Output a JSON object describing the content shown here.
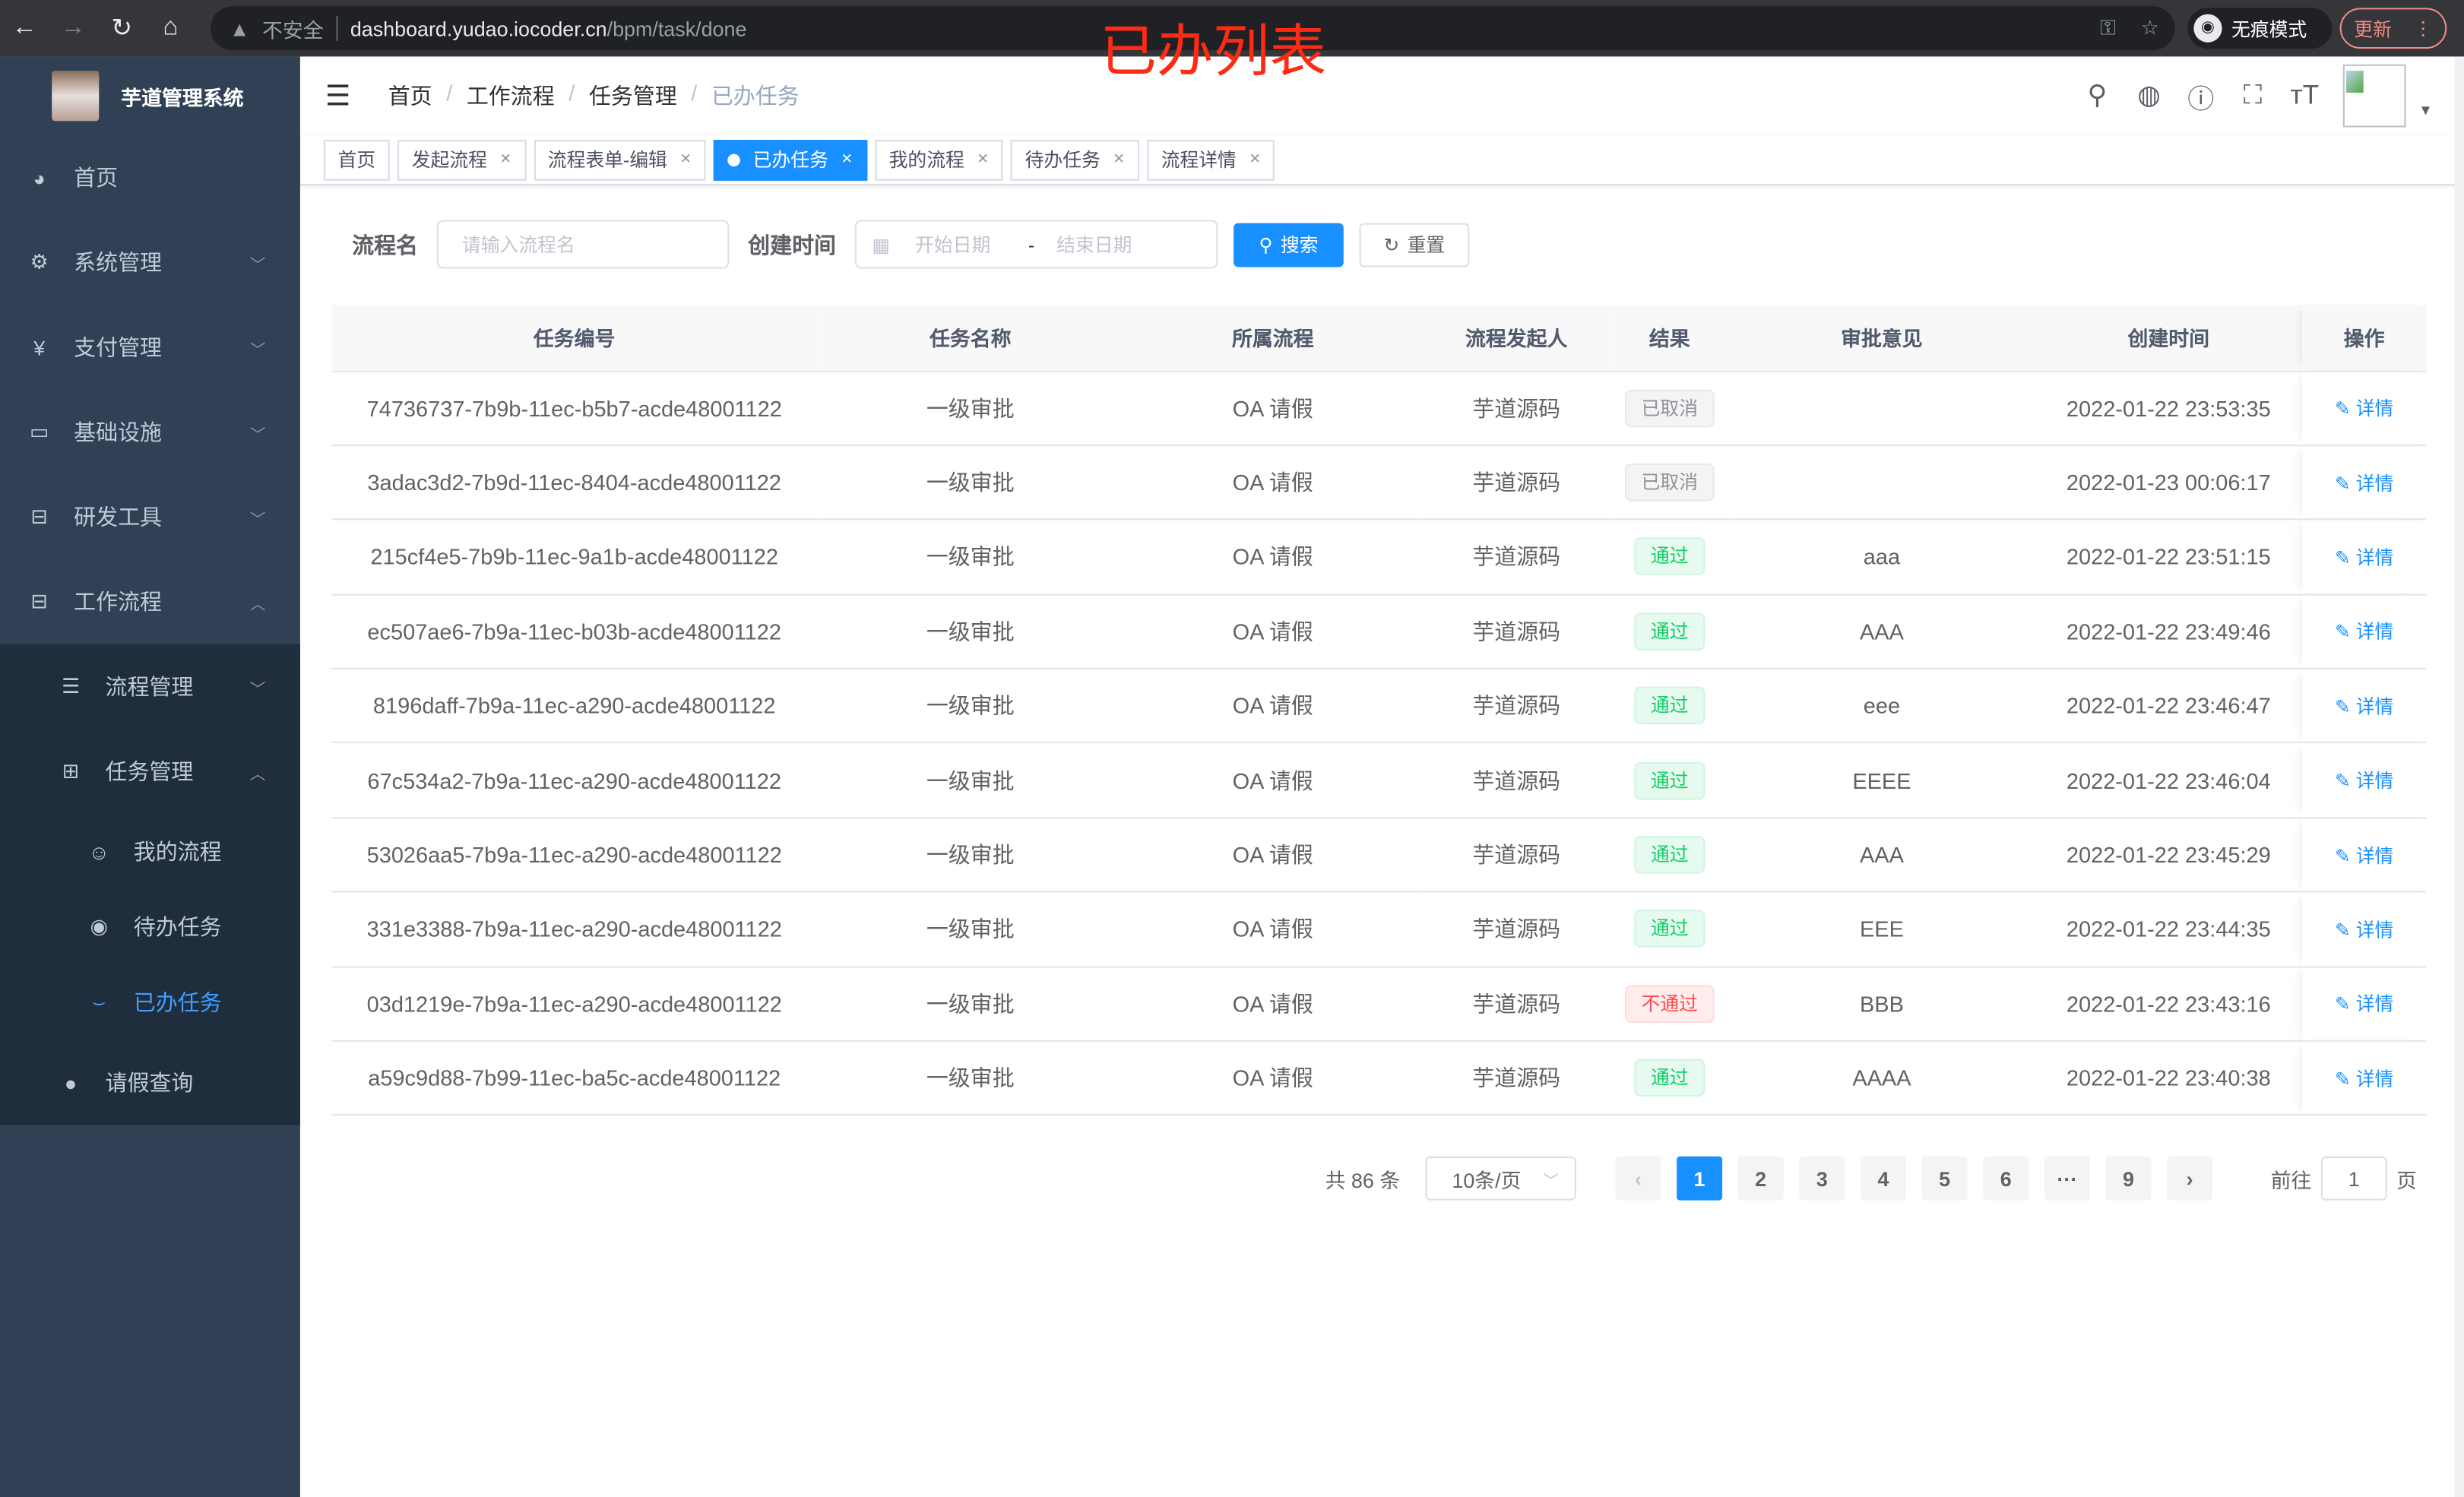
{
  "browser": {
    "back": "←",
    "forward": "→",
    "reload": "↻",
    "home": "⌂",
    "insecure_label": "不安全",
    "url_host": "dashboard.yudao.iocoder.cn",
    "url_path": "/bpm/task/done",
    "incognito_label": "无痕模式",
    "update_label": "更新"
  },
  "annotation": "已办列表",
  "annotation_color": "#ff2a14",
  "sidebar": {
    "title": "芋道管理系统",
    "items": [
      {
        "label": "首页",
        "icon": "dashboard-icon"
      },
      {
        "label": "系统管理",
        "icon": "gear-icon"
      },
      {
        "label": "支付管理",
        "icon": "yen-icon"
      },
      {
        "label": "基础设施",
        "icon": "monitor-icon"
      },
      {
        "label": "研发工具",
        "icon": "toolbox-icon"
      },
      {
        "label": "工作流程",
        "icon": "toolbox-icon"
      },
      {
        "label": "流程管理",
        "icon": "list-icon"
      },
      {
        "label": "任务管理",
        "icon": "tree-icon"
      },
      {
        "label": "我的流程",
        "icon": "people-icon"
      },
      {
        "label": "待办任务",
        "icon": "eye-icon"
      },
      {
        "label": "已办任务",
        "icon": "eye-closed-icon"
      },
      {
        "label": "请假查询",
        "icon": "user-icon"
      }
    ]
  },
  "breadcrumb": [
    "首页",
    "工作流程",
    "任务管理",
    "已办任务"
  ],
  "tags": [
    "首页",
    "发起流程",
    "流程表单-编辑",
    "已办任务",
    "我的流程",
    "待办任务",
    "流程详情"
  ],
  "filter": {
    "name_label": "流程名",
    "name_placeholder": "请输入流程名",
    "time_label": "创建时间",
    "start_placeholder": "开始日期",
    "range_sep": "-",
    "end_placeholder": "结束日期",
    "search_label": "搜索",
    "reset_label": "重置"
  },
  "table": {
    "columns": [
      "任务编号",
      "任务名称",
      "所属流程",
      "流程发起人",
      "结果",
      "审批意见",
      "创建时间",
      "操作"
    ],
    "rows": [
      {
        "id": "74736737-7b9b-11ec-b5b7-acde48001122",
        "name": "一级审批",
        "process": "OA 请假",
        "starter": "芋道源码",
        "result": "已取消",
        "result_type": "info",
        "comment": "",
        "time": "2022-01-22 23:53:35",
        "op": "详情"
      },
      {
        "id": "3adac3d2-7b9d-11ec-8404-acde48001122",
        "name": "一级审批",
        "process": "OA 请假",
        "starter": "芋道源码",
        "result": "已取消",
        "result_type": "info",
        "comment": "",
        "time": "2022-01-23 00:06:17",
        "op": "详情"
      },
      {
        "id": "215cf4e5-7b9b-11ec-9a1b-acde48001122",
        "name": "一级审批",
        "process": "OA 请假",
        "starter": "芋道源码",
        "result": "通过",
        "result_type": "success",
        "comment": "aaa",
        "time": "2022-01-22 23:51:15",
        "op": "详情"
      },
      {
        "id": "ec507ae6-7b9a-11ec-b03b-acde48001122",
        "name": "一级审批",
        "process": "OA 请假",
        "starter": "芋道源码",
        "result": "通过",
        "result_type": "success",
        "comment": "AAA",
        "time": "2022-01-22 23:49:46",
        "op": "详情"
      },
      {
        "id": "8196daff-7b9a-11ec-a290-acde48001122",
        "name": "一级审批",
        "process": "OA 请假",
        "starter": "芋道源码",
        "result": "通过",
        "result_type": "success",
        "comment": "eee",
        "time": "2022-01-22 23:46:47",
        "op": "详情"
      },
      {
        "id": "67c534a2-7b9a-11ec-a290-acde48001122",
        "name": "一级审批",
        "process": "OA 请假",
        "starter": "芋道源码",
        "result": "通过",
        "result_type": "success",
        "comment": "EEEE",
        "time": "2022-01-22 23:46:04",
        "op": "详情"
      },
      {
        "id": "53026aa5-7b9a-11ec-a290-acde48001122",
        "name": "一级审批",
        "process": "OA 请假",
        "starter": "芋道源码",
        "result": "通过",
        "result_type": "success",
        "comment": "AAA",
        "time": "2022-01-22 23:45:29",
        "op": "详情"
      },
      {
        "id": "331e3388-7b9a-11ec-a290-acde48001122",
        "name": "一级审批",
        "process": "OA 请假",
        "starter": "芋道源码",
        "result": "通过",
        "result_type": "success",
        "comment": "EEE",
        "time": "2022-01-22 23:44:35",
        "op": "详情"
      },
      {
        "id": "03d1219e-7b9a-11ec-a290-acde48001122",
        "name": "一级审批",
        "process": "OA 请假",
        "starter": "芋道源码",
        "result": "不通过",
        "result_type": "danger",
        "comment": "BBB",
        "time": "2022-01-22 23:43:16",
        "op": "详情"
      },
      {
        "id": "a59c9d88-7b99-11ec-ba5c-acde48001122",
        "name": "一级审批",
        "process": "OA 请假",
        "starter": "芋道源码",
        "result": "通过",
        "result_type": "success",
        "comment": "AAAA",
        "time": "2022-01-22 23:40:38",
        "op": "详情"
      }
    ]
  },
  "pagination": {
    "total": "共 86 条",
    "page_size": "10条/页",
    "pages": [
      "1",
      "2",
      "3",
      "4",
      "5",
      "6",
      "···",
      "9"
    ],
    "current": "1",
    "goto_prefix": "前往",
    "goto_value": "1",
    "goto_suffix": "页"
  },
  "colors": {
    "accent": "#1890ff",
    "sidebar": "#304156",
    "success": "#13ce66",
    "danger": "#ff4949",
    "info": "#909399"
  }
}
